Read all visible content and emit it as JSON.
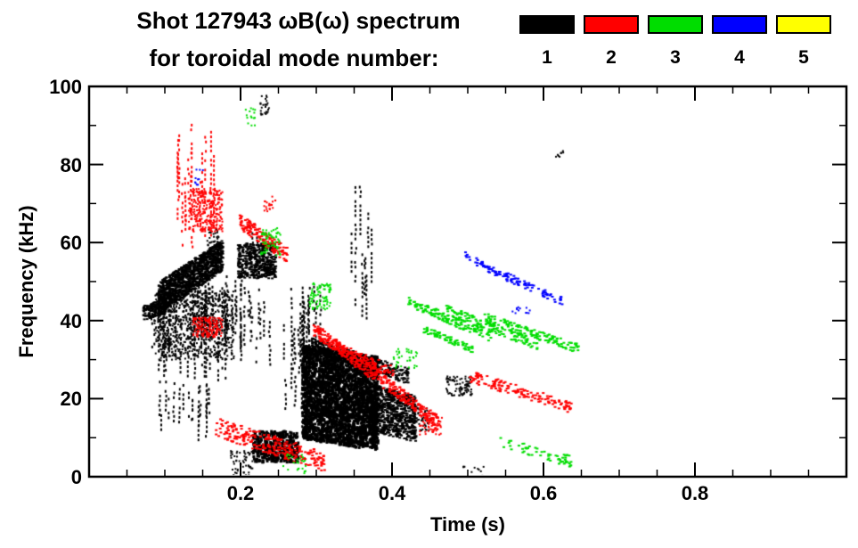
{
  "figure": {
    "background": "#ffffff",
    "axis_color": "#000000"
  },
  "chart_data": {
    "type": "scatter",
    "title": "Shot 127943 ωB(ω) spectrum",
    "subtitle": "for toroidal mode number:",
    "xlabel": "Time (s)",
    "ylabel": "Frequency (kHz)",
    "xlim": [
      0,
      1.0
    ],
    "ylim": [
      0,
      100
    ],
    "grid": false,
    "legend_position": "top-right",
    "xticks": {
      "major": [
        0.2,
        0.4,
        0.6,
        0.8
      ],
      "labels": [
        "0.2",
        "0.4",
        "0.6",
        "0.8"
      ],
      "minor_step": 0.05
    },
    "yticks": {
      "major": [
        0,
        20,
        40,
        60,
        80,
        100
      ],
      "labels": [
        "0",
        "20",
        "40",
        "60",
        "80",
        "100"
      ],
      "minor_step": 10
    },
    "legend": [
      {
        "label": "1",
        "color": "#000000"
      },
      {
        "label": "2",
        "color": "#ff0000"
      },
      {
        "label": "3",
        "color": "#00dd00"
      },
      {
        "label": "4",
        "color": "#0000ff"
      },
      {
        "label": "5",
        "color": "#ffff00"
      }
    ],
    "series": [
      {
        "name": "1",
        "color": "#000000",
        "clusters": [
          {
            "type": "chirp",
            "t": [
              0.07,
              0.1
            ],
            "f": [
              42,
              44
            ],
            "width": 4,
            "count": 150,
            "w": 3,
            "h": 2
          },
          {
            "type": "chirp",
            "t": [
              0.09,
              0.175
            ],
            "f": [
              46,
              57
            ],
            "width": 8,
            "count": 1200,
            "w": 3,
            "h": 2
          },
          {
            "type": "streaks",
            "t": [
              0.08,
              0.2
            ],
            "f": [
              25,
              52
            ],
            "count": 70
          },
          {
            "type": "box",
            "t": [
              0.085,
              0.19
            ],
            "f": [
              30,
              48
            ],
            "count": 700
          },
          {
            "type": "streaks",
            "t": [
              0.09,
              0.16
            ],
            "f": [
              8,
              28
            ],
            "count": 18
          },
          {
            "type": "box",
            "t": [
              0.195,
              0.245
            ],
            "f": [
              51,
              60
            ],
            "count": 450,
            "w": 3,
            "h": 2
          },
          {
            "type": "streaks",
            "t": [
              0.185,
              0.25
            ],
            "f": [
              28,
              52
            ],
            "count": 14
          },
          {
            "type": "streaks",
            "t": [
              0.205,
              0.23
            ],
            "f": [
              55,
              66
            ],
            "count": 6
          },
          {
            "type": "streaks",
            "t": [
              0.255,
              0.305
            ],
            "f": [
              12,
              52
            ],
            "count": 22
          },
          {
            "type": "chirp",
            "t": [
              0.28,
              0.38
            ],
            "f": [
              22,
              19
            ],
            "width": 24,
            "count": 3000,
            "w": 3,
            "h": 3
          },
          {
            "type": "chirp",
            "t": [
              0.37,
              0.43
            ],
            "f": [
              18,
              15
            ],
            "width": 12,
            "count": 700,
            "w": 3,
            "h": 2
          },
          {
            "type": "chirp",
            "t": [
              0.29,
              0.42
            ],
            "f": [
              34,
              26
            ],
            "width": 4,
            "count": 300
          },
          {
            "type": "streaks",
            "t": [
              0.345,
              0.375
            ],
            "f": [
              36,
              80
            ],
            "count": 9
          },
          {
            "type": "box",
            "t": [
              0.225,
              0.237
            ],
            "f": [
              93,
              98
            ],
            "count": 25
          },
          {
            "type": "box",
            "t": [
              0.47,
              0.505
            ],
            "f": [
              21,
              26
            ],
            "count": 90
          },
          {
            "type": "box",
            "t": [
              0.615,
              0.625
            ],
            "f": [
              82,
              84
            ],
            "count": 8
          },
          {
            "type": "box",
            "t": [
              0.215,
              0.275
            ],
            "f": [
              4,
              12
            ],
            "count": 400,
            "w": 3,
            "h": 3
          },
          {
            "type": "box",
            "t": [
              0.185,
              0.215
            ],
            "f": [
              0,
              7
            ],
            "count": 60
          },
          {
            "type": "box",
            "t": [
              0.155,
              0.17
            ],
            "f": [
              58,
              64
            ],
            "count": 40
          },
          {
            "type": "box",
            "t": [
              0.425,
              0.45
            ],
            "f": [
              12,
              18
            ],
            "count": 50
          },
          {
            "type": "box",
            "t": [
              0.49,
              0.52
            ],
            "f": [
              0,
              3
            ],
            "count": 15
          }
        ]
      },
      {
        "name": "2",
        "color": "#ff0000",
        "clusters": [
          {
            "type": "streaks",
            "t": [
              0.115,
              0.165
            ],
            "f": [
              58,
              92
            ],
            "count": 14
          },
          {
            "type": "box",
            "t": [
              0.13,
              0.175
            ],
            "f": [
              63,
              74
            ],
            "count": 280
          },
          {
            "type": "box",
            "t": [
              0.135,
              0.175
            ],
            "f": [
              36,
              41
            ],
            "count": 160
          },
          {
            "type": "chirp",
            "t": [
              0.195,
              0.26
            ],
            "f": [
              66,
              57
            ],
            "width": 4,
            "count": 140
          },
          {
            "type": "chirp",
            "t": [
              0.295,
              0.46
            ],
            "f": [
              38,
              14
            ],
            "width": 3.5,
            "count": 380
          },
          {
            "type": "chirp",
            "t": [
              0.32,
              0.4
            ],
            "f": [
              34,
              27
            ],
            "width": 3,
            "count": 110
          },
          {
            "type": "chirp",
            "t": [
              0.165,
              0.31
            ],
            "f": [
              13,
              4
            ],
            "width": 5,
            "count": 260
          },
          {
            "type": "chirp",
            "t": [
              0.5,
              0.635
            ],
            "f": [
              26,
              18
            ],
            "width": 3,
            "count": 150
          },
          {
            "type": "box",
            "t": [
              0.435,
              0.465
            ],
            "f": [
              11,
              16
            ],
            "count": 50
          },
          {
            "type": "box",
            "t": [
              0.23,
              0.245
            ],
            "f": [
              68,
              72
            ],
            "count": 20
          }
        ]
      },
      {
        "name": "3",
        "color": "#00dd00",
        "clusters": [
          {
            "type": "box",
            "t": [
              0.205,
              0.218
            ],
            "f": [
              90,
              95
            ],
            "count": 15
          },
          {
            "type": "box",
            "t": [
              0.225,
              0.252
            ],
            "f": [
              57,
              64
            ],
            "count": 70
          },
          {
            "type": "box",
            "t": [
              0.29,
              0.318
            ],
            "f": [
              43,
              50
            ],
            "count": 80
          },
          {
            "type": "chirp",
            "t": [
              0.42,
              0.53
            ],
            "f": [
              45,
              36
            ],
            "width": 2.5,
            "count": 140
          },
          {
            "type": "chirp",
            "t": [
              0.47,
              0.59
            ],
            "f": [
              43,
              34
            ],
            "width": 2.5,
            "count": 140
          },
          {
            "type": "chirp",
            "t": [
              0.52,
              0.645
            ],
            "f": [
              41,
              33
            ],
            "width": 2.5,
            "count": 140
          },
          {
            "type": "chirp",
            "t": [
              0.44,
              0.505
            ],
            "f": [
              38,
              33
            ],
            "width": 2,
            "count": 70
          },
          {
            "type": "chirp",
            "t": [
              0.54,
              0.635
            ],
            "f": [
              9,
              4
            ],
            "width": 3,
            "count": 60
          },
          {
            "type": "box",
            "t": [
              0.4,
              0.432
            ],
            "f": [
              28,
              33
            ],
            "count": 35
          },
          {
            "type": "box",
            "t": [
              0.255,
              0.285
            ],
            "f": [
              1,
              6
            ],
            "count": 25
          }
        ]
      },
      {
        "name": "4",
        "color": "#0000ff",
        "clusters": [
          {
            "type": "box",
            "t": [
              0.138,
              0.15
            ],
            "f": [
              75,
              79
            ],
            "count": 10
          },
          {
            "type": "chirp",
            "t": [
              0.495,
              0.56
            ],
            "f": [
              57,
              50
            ],
            "width": 2,
            "count": 55
          },
          {
            "type": "chirp",
            "t": [
              0.545,
              0.625
            ],
            "f": [
              52,
              45
            ],
            "width": 2,
            "count": 60
          },
          {
            "type": "box",
            "t": [
              0.558,
              0.582
            ],
            "f": [
              42,
              44
            ],
            "count": 12
          }
        ]
      },
      {
        "name": "5",
        "color": "#ffff00",
        "clusters": []
      }
    ]
  }
}
